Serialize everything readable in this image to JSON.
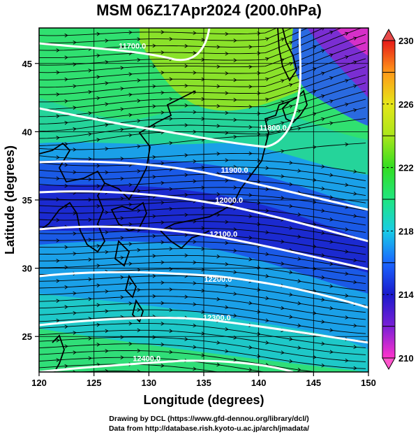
{
  "title": "MSM 06Z17Apr2024 (200.0hPa)",
  "xlabel": "Longitude (degrees)",
  "ylabel": "Latitude  (degrees)",
  "credit_line1": "Drawing by DCL (https://www.gfd-dennou.org/library/dcl/)",
  "credit_line2": "Data from http://database.rish.kyoto-u.ac.jp/arch/jmadata/",
  "chart_data": {
    "type": "heatmap",
    "xlim": [
      120,
      150
    ],
    "ylim": [
      22.4,
      47.6
    ],
    "x_ticks": [
      "120",
      "125",
      "130",
      "135",
      "140",
      "145",
      "150"
    ],
    "y_ticks": [
      "25",
      "30",
      "35",
      "40",
      "45"
    ],
    "colorbar": {
      "min": 210,
      "max": 230,
      "tick_labels": [
        "210",
        "214",
        "218",
        "222",
        "226",
        "230"
      ],
      "colors": [
        "#ff33cc",
        "#7a1fd6",
        "#1a1acc",
        "#1a66ff",
        "#19cce6",
        "#20e680",
        "#33dd22",
        "#aae61a",
        "#e6e619",
        "#ff9919",
        "#e61919"
      ]
    },
    "contours": [
      {
        "label": "11700.0",
        "label_lon": 128.5,
        "label_lat": 46.1
      },
      {
        "label": "11800.0",
        "label_lon": 141.3,
        "label_lat": 40.1
      },
      {
        "label": "11900.0",
        "label_lon": 137.8,
        "label_lat": 37.0
      },
      {
        "label": "12000.0",
        "label_lon": 137.3,
        "label_lat": 34.8
      },
      {
        "label": "12100.0",
        "label_lon": 136.8,
        "label_lat": 32.3
      },
      {
        "label": "12200.0",
        "label_lon": 136.3,
        "label_lat": 29.0
      },
      {
        "label": "12300.0",
        "label_lon": 136.2,
        "label_lat": 26.2
      },
      {
        "label": "12400.0",
        "label_lon": 129.8,
        "label_lat": 23.2
      }
    ],
    "grid": true,
    "vectors": "streamlines, mostly west-to-east"
  }
}
